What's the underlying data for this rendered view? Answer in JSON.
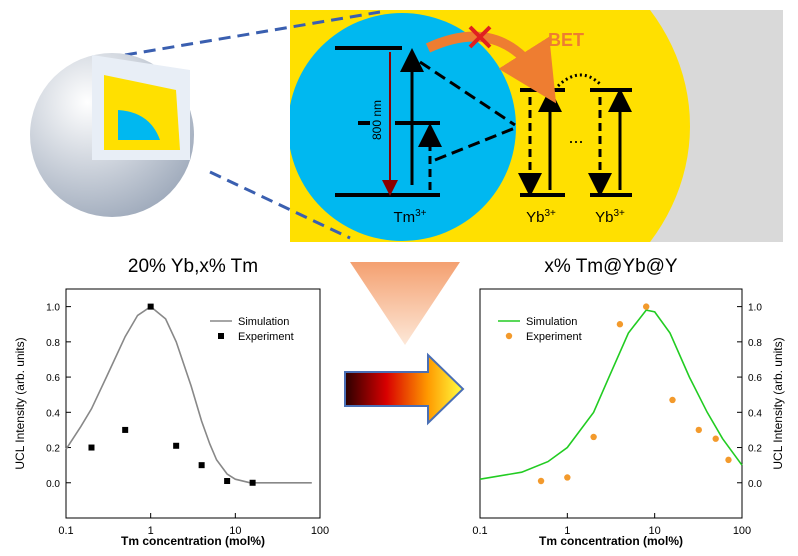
{
  "chart_data": [
    {
      "type": "line",
      "title": "20% Yb,x% Tm",
      "x_label": "Tm concentration (mol%)",
      "y_label": "UCL Intensity (arb. units)",
      "xscale": "log",
      "xlim": [
        0.1,
        100
      ],
      "xticks": [
        0.1,
        1,
        10,
        100
      ],
      "ylim": [
        -0.2,
        1.1
      ],
      "yticks": [
        {
          "value": 0,
          "label": "0.0"
        },
        {
          "value": 0.2,
          "label": "0.2"
        },
        {
          "value": 0.4,
          "label": "0.4"
        },
        {
          "value": 0.6,
          "label": "0.6"
        },
        {
          "value": 0.8,
          "label": "0.8"
        },
        {
          "value": 1,
          "label": "1.0"
        }
      ],
      "yaxis_side": "left",
      "legend": "upper right",
      "series": [
        {
          "name": "Simulation",
          "color": "#888888",
          "style": "line",
          "x": [
            0.1,
            0.15,
            0.2,
            0.3,
            0.5,
            0.7,
            1,
            1.5,
            2,
            3,
            4,
            5,
            6,
            8,
            10,
            15,
            30,
            80
          ],
          "values": [
            0.19,
            0.32,
            0.42,
            0.6,
            0.83,
            0.95,
            1.0,
            0.93,
            0.8,
            0.55,
            0.35,
            0.22,
            0.13,
            0.05,
            0.02,
            0.0,
            0.0,
            0.0
          ]
        },
        {
          "name": "Experiment",
          "color": "#000000",
          "style": "square",
          "x": [
            0.2,
            0.5,
            1,
            2,
            4,
            8,
            16
          ],
          "values": [
            0.2,
            0.3,
            1.0,
            0.21,
            0.1,
            0.01,
            0.0
          ]
        }
      ]
    },
    {
      "type": "line",
      "title": "x% Tm@Yb@Y",
      "x_label": "Tm concentration (mol%)",
      "y_label": "UCL Intensity (arb. units)",
      "xscale": "log",
      "xlim": [
        0.1,
        100
      ],
      "xticks": [
        0.1,
        1,
        10,
        100
      ],
      "ylim": [
        -0.2,
        1.1
      ],
      "yticks": [
        {
          "value": 0,
          "label": "0.0"
        },
        {
          "value": 0.2,
          "label": "0.2"
        },
        {
          "value": 0.4,
          "label": "0.4"
        },
        {
          "value": 0.6,
          "label": "0.6"
        },
        {
          "value": 0.8,
          "label": "0.8"
        },
        {
          "value": 1,
          "label": "1.0"
        }
      ],
      "yaxis_side": "right",
      "legend": "upper left",
      "series": [
        {
          "name": "Simulation",
          "color": "#22cc22",
          "style": "line",
          "x": [
            0.1,
            0.3,
            0.6,
            1,
            2,
            3,
            5,
            8,
            10,
            15,
            25,
            40,
            60,
            100
          ],
          "values": [
            0.02,
            0.06,
            0.12,
            0.2,
            0.4,
            0.6,
            0.85,
            0.98,
            0.97,
            0.85,
            0.6,
            0.4,
            0.25,
            0.1
          ]
        },
        {
          "name": "Experiment",
          "color": "#f39a2c",
          "style": "circle",
          "x": [
            0.5,
            1,
            2,
            4,
            8,
            16,
            32,
            50,
            70
          ],
          "values": [
            0.01,
            0.03,
            0.26,
            0.9,
            1.0,
            0.47,
            0.3,
            0.25,
            0.13
          ]
        }
      ]
    }
  ],
  "diagram": {
    "bet": "BET",
    "wavelength": "800 nm",
    "dots": "...",
    "ions": [
      {
        "base": "Tm",
        "sup": "3+"
      },
      {
        "base": "Yb",
        "sup": "3+"
      },
      {
        "base": "Yb",
        "sup": "3+"
      }
    ]
  }
}
